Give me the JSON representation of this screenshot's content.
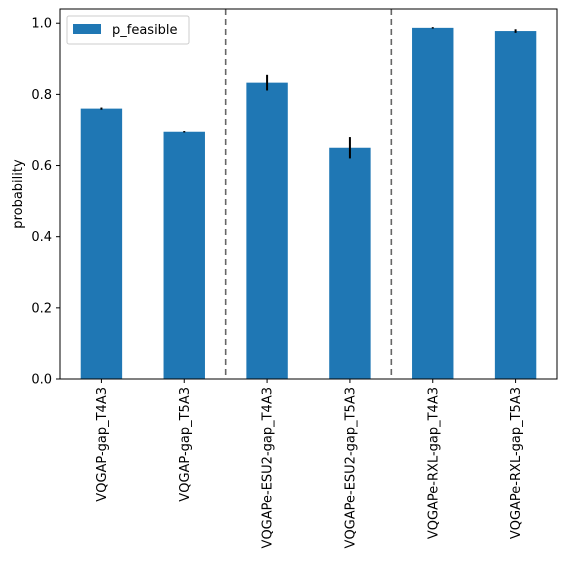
{
  "chart_data": {
    "type": "bar",
    "categories": [
      "VQGAP-gap_T4A3",
      "VQGAP-gap_T5A3",
      "VQGAPe-ESU2-gap_T4A3",
      "VQGAPe-ESU2-gap_T5A3",
      "VQGAPe-RXL-gap_T4A3",
      "VQGAPe-RXL-gap_T5A3"
    ],
    "series": [
      {
        "name": "p_feasible",
        "color": "#1f77b4",
        "values": [
          0.76,
          0.695,
          0.833,
          0.65,
          0.987,
          0.978
        ],
        "errors": [
          0.003,
          0.002,
          0.022,
          0.03,
          0.002,
          0.005
        ]
      }
    ],
    "title": "",
    "xlabel": "",
    "ylabel": "probability",
    "ylim": [
      0.0,
      1.04
    ],
    "yticks": [
      "0.0",
      "0.2",
      "0.4",
      "0.6",
      "0.8",
      "1.0"
    ],
    "separators_after_category": [
      1,
      3
    ],
    "separator_style": "dashed",
    "grid": false,
    "legend_position": "top-left"
  }
}
